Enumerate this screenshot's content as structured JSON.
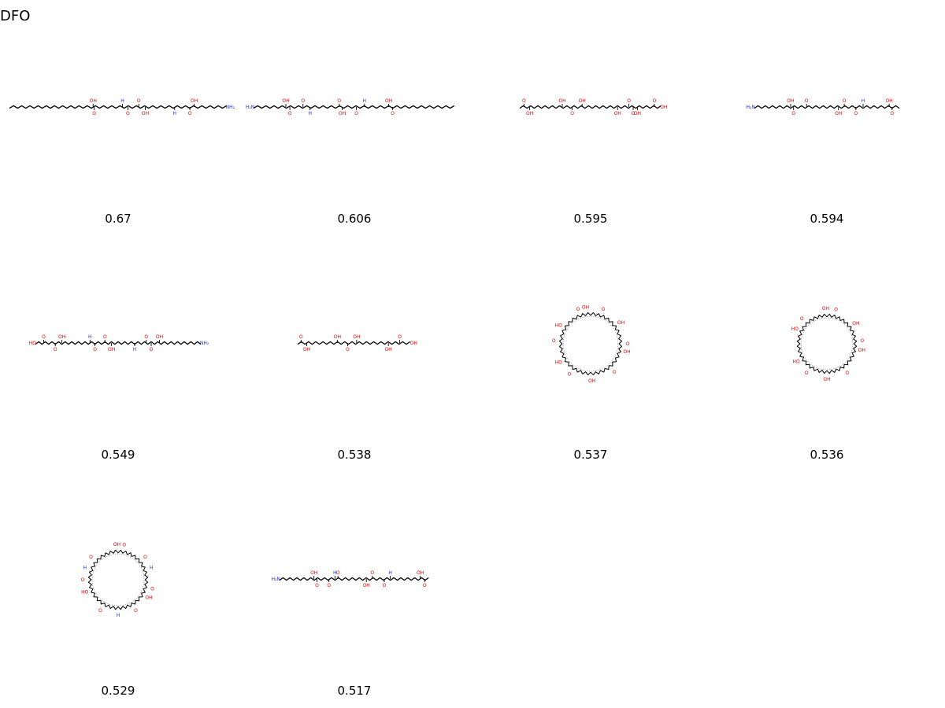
{
  "title": "DFO",
  "colors": {
    "bond": "#000000",
    "oxygen": "#e00000",
    "nitrogen": "#2233dd"
  },
  "molecules": [
    {
      "score": "0.67",
      "kind": "chain",
      "atoms": [
        {
          "pos": 0.385,
          "label": "OH",
          "element": "O",
          "side": "up"
        },
        {
          "pos": 0.39,
          "label": "O",
          "element": "O",
          "side": "down"
        },
        {
          "pos": 0.52,
          "label": "H",
          "element": "N",
          "side": "up"
        },
        {
          "pos": 0.545,
          "label": "O",
          "element": "O",
          "side": "down"
        },
        {
          "pos": 0.595,
          "label": "O",
          "element": "O",
          "side": "up"
        },
        {
          "pos": 0.625,
          "label": "OH",
          "element": "O",
          "side": "down"
        },
        {
          "pos": 0.76,
          "label": "H",
          "element": "N",
          "side": "down"
        },
        {
          "pos": 0.83,
          "label": "O",
          "element": "O",
          "side": "down"
        },
        {
          "pos": 0.85,
          "label": "OH",
          "element": "O",
          "side": "up"
        },
        {
          "pos": 0.995,
          "label": "NH₂",
          "element": "N",
          "side": "end"
        }
      ]
    },
    {
      "score": "0.606",
      "kind": "chain",
      "atoms": [
        {
          "pos": 0.005,
          "label": "H₂N",
          "element": "N",
          "side": "start"
        },
        {
          "pos": 0.16,
          "label": "OH",
          "element": "O",
          "side": "up"
        },
        {
          "pos": 0.18,
          "label": "O",
          "element": "O",
          "side": "down"
        },
        {
          "pos": 0.245,
          "label": "O",
          "element": "O",
          "side": "up"
        },
        {
          "pos": 0.28,
          "label": "H",
          "element": "N",
          "side": "down"
        },
        {
          "pos": 0.425,
          "label": "O",
          "element": "O",
          "side": "up"
        },
        {
          "pos": 0.44,
          "label": "OH",
          "element": "O",
          "side": "down"
        },
        {
          "pos": 0.51,
          "label": "O",
          "element": "O",
          "side": "down"
        },
        {
          "pos": 0.55,
          "label": "H",
          "element": "N",
          "side": "up"
        },
        {
          "pos": 0.67,
          "label": "OH",
          "element": "O",
          "side": "up"
        },
        {
          "pos": 0.69,
          "label": "O",
          "element": "O",
          "side": "down"
        }
      ]
    },
    {
      "score": "0.595",
      "kind": "chain",
      "atoms": [
        {
          "pos": 0.03,
          "label": "O",
          "element": "O",
          "side": "up"
        },
        {
          "pos": 0.07,
          "label": "OH",
          "element": "O",
          "side": "down"
        },
        {
          "pos": 0.3,
          "label": "OH",
          "element": "O",
          "side": "up"
        },
        {
          "pos": 0.37,
          "label": "O",
          "element": "O",
          "side": "down"
        },
        {
          "pos": 0.44,
          "label": "OH",
          "element": "O",
          "side": "up"
        },
        {
          "pos": 0.69,
          "label": "OH",
          "element": "O",
          "side": "down"
        },
        {
          "pos": 0.77,
          "label": "O",
          "element": "O",
          "side": "up"
        },
        {
          "pos": 0.8,
          "label": "O",
          "element": "O",
          "side": "down"
        },
        {
          "pos": 0.83,
          "label": "OH",
          "element": "O",
          "side": "down"
        },
        {
          "pos": 0.95,
          "label": "O",
          "element": "O",
          "side": "up"
        },
        {
          "pos": 0.99,
          "label": "OH",
          "element": "O",
          "side": "end"
        }
      ]
    },
    {
      "score": "0.594",
      "kind": "chain",
      "atoms": [
        {
          "pos": 0.005,
          "label": "H₂N",
          "element": "N",
          "side": "start"
        },
        {
          "pos": 0.25,
          "label": "OH",
          "element": "O",
          "side": "up"
        },
        {
          "pos": 0.27,
          "label": "O",
          "element": "O",
          "side": "down"
        },
        {
          "pos": 0.36,
          "label": "O",
          "element": "O",
          "side": "up"
        },
        {
          "pos": 0.58,
          "label": "OH",
          "element": "O",
          "side": "down"
        },
        {
          "pos": 0.62,
          "label": "O",
          "element": "O",
          "side": "up"
        },
        {
          "pos": 0.7,
          "label": "O",
          "element": "O",
          "side": "down"
        },
        {
          "pos": 0.75,
          "label": "H",
          "element": "N",
          "side": "up"
        },
        {
          "pos": 0.93,
          "label": "OH",
          "element": "O",
          "side": "up"
        },
        {
          "pos": 0.95,
          "label": "O",
          "element": "O",
          "side": "down"
        }
      ]
    },
    {
      "score": "0.549",
      "kind": "chain",
      "atoms": [
        {
          "pos": 0.005,
          "label": "HO",
          "element": "O",
          "side": "start"
        },
        {
          "pos": 0.05,
          "label": "O",
          "element": "O",
          "side": "up"
        },
        {
          "pos": 0.12,
          "label": "O",
          "element": "O",
          "side": "down"
        },
        {
          "pos": 0.16,
          "label": "OH",
          "element": "O",
          "side": "up"
        },
        {
          "pos": 0.33,
          "label": "H",
          "element": "N",
          "side": "up"
        },
        {
          "pos": 0.36,
          "label": "O",
          "element": "O",
          "side": "down"
        },
        {
          "pos": 0.42,
          "label": "O",
          "element": "O",
          "side": "up"
        },
        {
          "pos": 0.46,
          "label": "OH",
          "element": "O",
          "side": "down"
        },
        {
          "pos": 0.6,
          "label": "H",
          "element": "N",
          "side": "down"
        },
        {
          "pos": 0.67,
          "label": "O",
          "element": "O",
          "side": "up"
        },
        {
          "pos": 0.7,
          "label": "O",
          "element": "O",
          "side": "down"
        },
        {
          "pos": 0.75,
          "label": "OH",
          "element": "O",
          "side": "up"
        },
        {
          "pos": 0.995,
          "label": "NH₂",
          "element": "N",
          "side": "end"
        }
      ]
    },
    {
      "score": "0.538",
      "kind": "chain",
      "atoms": [
        {
          "pos": 0.03,
          "label": "O",
          "element": "O",
          "side": "up"
        },
        {
          "pos": 0.08,
          "label": "OH",
          "element": "O",
          "side": "down"
        },
        {
          "pos": 0.35,
          "label": "OH",
          "element": "O",
          "side": "up"
        },
        {
          "pos": 0.44,
          "label": "O",
          "element": "O",
          "side": "down"
        },
        {
          "pos": 0.52,
          "label": "OH",
          "element": "O",
          "side": "up"
        },
        {
          "pos": 0.8,
          "label": "OH",
          "element": "O",
          "side": "down"
        },
        {
          "pos": 0.9,
          "label": "O",
          "element": "O",
          "side": "up"
        },
        {
          "pos": 0.99,
          "label": "OH",
          "element": "O",
          "side": "end"
        }
      ]
    },
    {
      "score": "0.537",
      "kind": "ring",
      "atoms": [
        {
          "angle": -98,
          "label": "OH",
          "element": "O"
        },
        {
          "angle": -110,
          "label": "O",
          "element": "O"
        },
        {
          "angle": -70,
          "label": "O",
          "element": "O"
        },
        {
          "angle": -35,
          "label": "OH",
          "element": "O"
        },
        {
          "angle": 0,
          "label": "O",
          "element": "O"
        },
        {
          "angle": 12,
          "label": "OH",
          "element": "O"
        },
        {
          "angle": 50,
          "label": "O",
          "element": "O"
        },
        {
          "angle": 88,
          "label": "OH",
          "element": "O"
        },
        {
          "angle": 125,
          "label": "O",
          "element": "O"
        },
        {
          "angle": 150,
          "label": "HO",
          "element": "O"
        },
        {
          "angle": 185,
          "label": "O",
          "element": "O"
        },
        {
          "angle": 210,
          "label": "HO",
          "element": "O"
        }
      ]
    },
    {
      "score": "0.536",
      "kind": "ring",
      "atoms": [
        {
          "angle": -92,
          "label": "OH",
          "element": "O"
        },
        {
          "angle": -75,
          "label": "O",
          "element": "O"
        },
        {
          "angle": -35,
          "label": "OH",
          "element": "O"
        },
        {
          "angle": -5,
          "label": "O",
          "element": "O"
        },
        {
          "angle": 10,
          "label": "OH",
          "element": "O"
        },
        {
          "angle": 55,
          "label": "O",
          "element": "O"
        },
        {
          "angle": 90,
          "label": "OH",
          "element": "O"
        },
        {
          "angle": 125,
          "label": "O",
          "element": "O"
        },
        {
          "angle": 150,
          "label": "HO",
          "element": "O"
        },
        {
          "angle": 205,
          "label": "HO",
          "element": "O"
        },
        {
          "angle": 225,
          "label": "O",
          "element": "O"
        }
      ]
    },
    {
      "score": "0.529",
      "kind": "ring",
      "atoms": [
        {
          "angle": -92,
          "label": "OH",
          "element": "O"
        },
        {
          "angle": -80,
          "label": "O",
          "element": "O"
        },
        {
          "angle": -40,
          "label": "O",
          "element": "O"
        },
        {
          "angle": -20,
          "label": "H",
          "element": "N"
        },
        {
          "angle": 15,
          "label": "O",
          "element": "O"
        },
        {
          "angle": 30,
          "label": "OH",
          "element": "O"
        },
        {
          "angle": 60,
          "label": "O",
          "element": "O"
        },
        {
          "angle": 90,
          "label": "H",
          "element": "N"
        },
        {
          "angle": 120,
          "label": "O",
          "element": "O"
        },
        {
          "angle": 160,
          "label": "HO",
          "element": "O"
        },
        {
          "angle": 180,
          "label": "O",
          "element": "O"
        },
        {
          "angle": 200,
          "label": "H",
          "element": "N"
        },
        {
          "angle": 220,
          "label": "O",
          "element": "O"
        }
      ]
    },
    {
      "score": "0.517",
      "kind": "chain",
      "atoms": [
        {
          "pos": 0.005,
          "label": "H₂N",
          "element": "N",
          "side": "start"
        },
        {
          "pos": 0.23,
          "label": "OH",
          "element": "O",
          "side": "up"
        },
        {
          "pos": 0.25,
          "label": "O",
          "element": "O",
          "side": "down"
        },
        {
          "pos": 0.33,
          "label": "O",
          "element": "O",
          "side": "down"
        },
        {
          "pos": 0.37,
          "label": "H",
          "element": "N",
          "side": "up"
        },
        {
          "pos": 0.39,
          "label": "O",
          "element": "O",
          "side": "up"
        },
        {
          "pos": 0.58,
          "label": "OH",
          "element": "O",
          "side": "down"
        },
        {
          "pos": 0.62,
          "label": "O",
          "element": "O",
          "side": "up"
        },
        {
          "pos": 0.7,
          "label": "O",
          "element": "O",
          "side": "down"
        },
        {
          "pos": 0.74,
          "label": "H",
          "element": "N",
          "side": "up"
        },
        {
          "pos": 0.94,
          "label": "OH",
          "element": "O",
          "side": "up"
        },
        {
          "pos": 0.97,
          "label": "O",
          "element": "O",
          "side": "down"
        }
      ]
    }
  ]
}
